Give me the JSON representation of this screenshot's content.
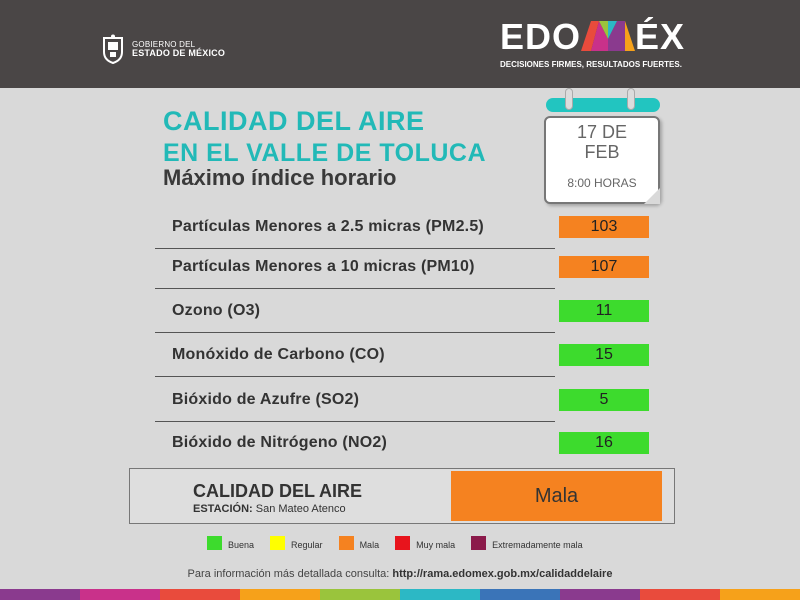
{
  "header": {
    "gov_line1": "GOBIERNO DEL",
    "gov_line2": "ESTADO DE MÉXICO",
    "brand_left": "EDO",
    "brand_right": "ÉX",
    "slogan": "DECISIONES FIRMES, RESULTADOS FUERTES."
  },
  "title": {
    "line1": "CALIDAD DEL AIRE",
    "line2": "EN EL VALLE DE TOLUCA",
    "line3": "Máximo índice horario"
  },
  "calendar": {
    "day": "17 DE",
    "month": "FEB",
    "hour": "8:00 HORAS"
  },
  "pollutants": [
    {
      "label": "Partículas Menores a 2.5 micras (PM2.5)",
      "value": "103",
      "level": "Mala",
      "color": "#f58220"
    },
    {
      "label": "Partículas Menores a 10 micras (PM10)",
      "value": "107",
      "level": "Mala",
      "color": "#f58220"
    },
    {
      "label": "Ozono (O3)",
      "value": "11",
      "level": "Buena",
      "color": "#3ddb2d"
    },
    {
      "label": "Monóxido de Carbono (CO)",
      "value": "15",
      "level": "Buena",
      "color": "#3ddb2d"
    },
    {
      "label": "Bióxido de Azufre (SO2)",
      "value": "5",
      "level": "Buena",
      "color": "#3ddb2d"
    },
    {
      "label": "Bióxido de Nitrógeno (NO2)",
      "value": "16",
      "level": "Buena",
      "color": "#3ddb2d"
    }
  ],
  "summary": {
    "title": "CALIDAD DEL AIRE",
    "station_label": "ESTACIÓN:",
    "station_value": "San Mateo  Atenco",
    "status": "Mala",
    "status_color": "#f58220"
  },
  "legend": [
    {
      "label": "Buena",
      "color": "#3ddb2d"
    },
    {
      "label": "Regular",
      "color": "#ffff00"
    },
    {
      "label": "Mala",
      "color": "#f58220"
    },
    {
      "label": "Muy mala",
      "color": "#e8141c"
    },
    {
      "label": "Extremadamente mala",
      "color": "#8b1a4a"
    }
  ],
  "footer": {
    "text": "Para información más detallada consulta:",
    "url": "http://rama.edomex.gob.mx/calidaddelaire"
  },
  "colors": {
    "accent": "#22b9b7",
    "stripe": [
      "#8a3a8e",
      "#c9318a",
      "#e94b3c",
      "#f6a11a",
      "#9ac43c",
      "#2cb8c5",
      "#3a74b8",
      "#8a3a8e",
      "#e94b3c",
      "#f6a11a"
    ]
  }
}
